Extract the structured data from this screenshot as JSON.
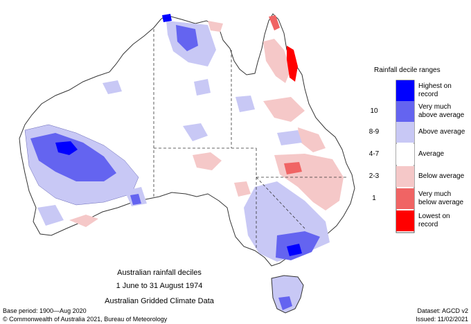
{
  "caption": {
    "line1": "Australian rainfall deciles",
    "line2": "1 June to 31 August 1974",
    "line3": "Australian Gridded Climate Data"
  },
  "footer": {
    "base_period": "Base period: 1900—Aug 2020",
    "dataset": "Dataset: AGCD v2",
    "copyright": "© Commonwealth of Australia 2021, Bureau of Meteorology",
    "issued": "Issued: 11/02/2021"
  },
  "legend": {
    "title": "Rainfall decile ranges",
    "items": [
      {
        "decile": "",
        "label_line1": "Highest on",
        "label_line2": "record",
        "color": "#0000ff"
      },
      {
        "decile": "10",
        "label_line1": "Very much",
        "label_line2": "above average",
        "color": "#6464f0"
      },
      {
        "decile": "8-9",
        "label_line1": "Above average",
        "label_line2": "",
        "color": "#c8c8f5"
      },
      {
        "decile": "4-7",
        "label_line1": "Average",
        "label_line2": "",
        "color": "#ffffff"
      },
      {
        "decile": "2-3",
        "label_line1": "Below average",
        "label_line2": "",
        "color": "#f5c8c8"
      },
      {
        "decile": "1",
        "label_line1": "Very much",
        "label_line2": "below average",
        "color": "#f06464"
      },
      {
        "decile": "",
        "label_line1": "Lowest on",
        "label_line2": "record",
        "color": "#ff0000"
      }
    ]
  }
}
